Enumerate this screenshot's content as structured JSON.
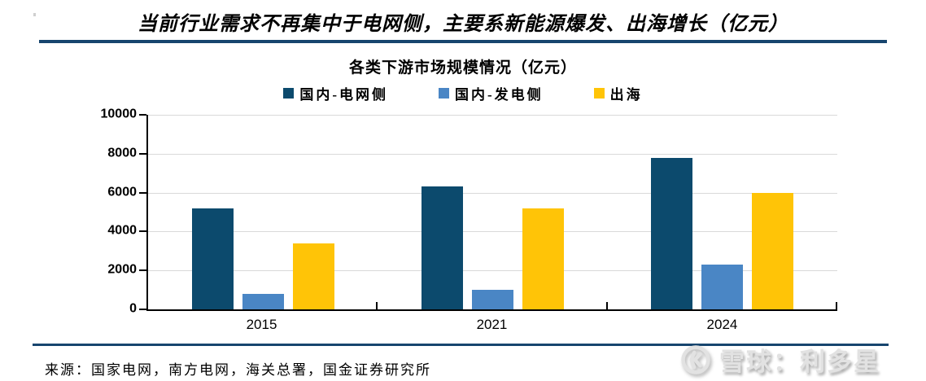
{
  "header": {
    "title": "当前行业需求不再集中于电网侧，主要系新能源爆发、出海增长（亿元）"
  },
  "chart_data": {
    "type": "bar",
    "title": "各类下游市场规模情况（亿元）",
    "categories": [
      "2015",
      "2021",
      "2024"
    ],
    "series": [
      {
        "name": "国内-电网侧",
        "color": "#0c4a6d",
        "values": [
          5200,
          6300,
          7800
        ]
      },
      {
        "name": "国内-发电侧",
        "color": "#4a86c5",
        "values": [
          800,
          1000,
          2300
        ]
      },
      {
        "name": "出海",
        "color": "#ffc407",
        "values": [
          3400,
          5200,
          6000
        ]
      }
    ],
    "ylim": [
      0,
      10000
    ],
    "yticks": [
      10000,
      8000,
      6000,
      4000,
      2000,
      0
    ],
    "grid": "horizontal",
    "legend_position": "top"
  },
  "footer": {
    "source": "来源：国家电网，南方电网，海关总署，国金证券研究所",
    "watermark_text": "雪球：利多星"
  },
  "colors": {
    "divider": "#17456e",
    "grid_line": "#d9d9d9",
    "axis": "#000000",
    "watermark_gray": "#e2e2e2"
  }
}
